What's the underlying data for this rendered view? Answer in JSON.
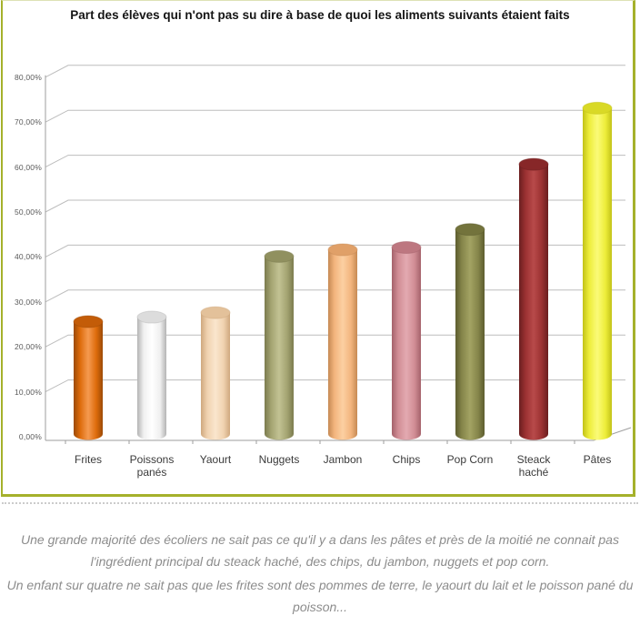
{
  "frame": {
    "border_color": "#a5b12b"
  },
  "chart_data": {
    "type": "bar",
    "style": "3d-cylinder",
    "title": "Part des élèves qui n'ont pas su dire à base de quoi les aliments suivants étaient faits",
    "categories": [
      "Frites",
      "Poissons panés",
      "Yaourt",
      "Nuggets",
      "Jambon",
      "Chips",
      "Pop Corn",
      "Steack haché",
      "Pâtes"
    ],
    "values": [
      25,
      26,
      27,
      39.5,
      41,
      41.5,
      45.5,
      60,
      72.5
    ],
    "unit": "%",
    "ylim": [
      0,
      80
    ],
    "ytick_step": 10,
    "ytick_labels": [
      "0,00%",
      "10,00%",
      "20,00%",
      "30,00%",
      "40,00%",
      "50,00%",
      "60,00%",
      "70,00%",
      "80,00%"
    ],
    "grid": true,
    "legend": "none",
    "bar_colors": [
      {
        "name": "orange",
        "dark": "#9c4a06",
        "base": "#dd6b0b",
        "light": "#f59a50",
        "top": "#c35c08"
      },
      {
        "name": "white",
        "dark": "#b4b4b4",
        "base": "#f0f0f0",
        "light": "#ffffff",
        "top": "#dcdcdc"
      },
      {
        "name": "cream",
        "dark": "#cfa87e",
        "base": "#f0d2b0",
        "light": "#fae6cd",
        "top": "#e3c19a"
      },
      {
        "name": "sage-green",
        "dark": "#7b7b4e",
        "base": "#a3a371",
        "light": "#c2c293",
        "top": "#90905f"
      },
      {
        "name": "peach",
        "dark": "#c68a54",
        "base": "#f3b57e",
        "light": "#fcd0a2",
        "top": "#e0a068"
      },
      {
        "name": "dusty-pink",
        "dark": "#a5626b",
        "base": "#d18d95",
        "light": "#e3aab1",
        "top": "#bd7780"
      },
      {
        "name": "dark-khaki",
        "dark": "#5c5c2e",
        "base": "#85854a",
        "light": "#a3a363",
        "top": "#73733c"
      },
      {
        "name": "dark-red",
        "dark": "#6a1e1f",
        "base": "#9b3132",
        "light": "#b84a4a",
        "top": "#872728"
      },
      {
        "name": "yellow",
        "dark": "#c2c218",
        "base": "#eded3a",
        "light": "#fbfb78",
        "top": "#d9d926"
      }
    ]
  },
  "caption": {
    "paragraph1": "Une grande majorité des écoliers ne sait pas ce qu'il y a dans les pâtes et près de la moitié ne connait pas l'ingrédient principal du steack haché, des chips, du jambon, nuggets et pop corn.",
    "paragraph2": "Un enfant sur quatre ne sait pas que les frites sont des pommes de terre, le yaourt du lait et le poisson pané du poisson..."
  }
}
